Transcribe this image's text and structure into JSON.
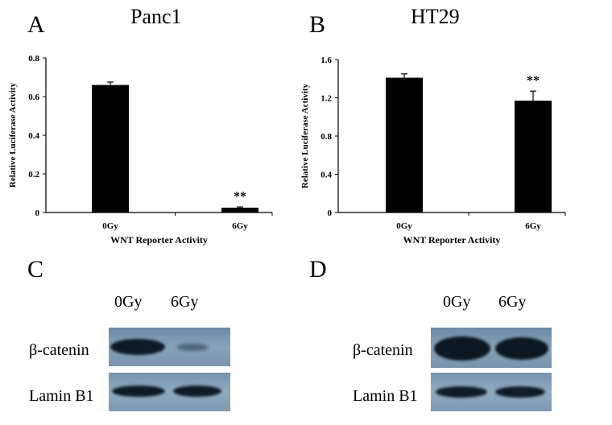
{
  "panels": {
    "A": {
      "letter": "A",
      "title": "Panc1"
    },
    "B": {
      "letter": "B",
      "title": "HT29"
    },
    "C": {
      "letter": "C",
      "lanes": [
        "0Gy",
        "6Gy"
      ],
      "rows": [
        "β-catenin",
        "Lamin B1"
      ]
    },
    "D": {
      "letter": "D",
      "lanes": [
        "0Gy",
        "6Gy"
      ],
      "rows": [
        "β-catenin",
        "Lamin B1"
      ]
    }
  },
  "chart_data": [
    {
      "type": "bar",
      "title": "Panc1",
      "categories": [
        "0Gy",
        "6Gy"
      ],
      "values": [
        0.66,
        0.025
      ],
      "errors": [
        0.015,
        0.004
      ],
      "annotations": [
        "",
        "**"
      ],
      "xlabel": "WNT Reporter Activity",
      "ylabel": "Relative Luciferase Activity",
      "ylim": [
        0,
        0.8
      ],
      "yticks": [
        0,
        0.2,
        0.4,
        0.6,
        0.8
      ],
      "yticklabels": [
        "0",
        "0.2",
        "0.4",
        "0.6",
        "0.8"
      ],
      "bar_color": "#000000"
    },
    {
      "type": "bar",
      "title": "HT29",
      "categories": [
        "0Gy",
        "6Gy"
      ],
      "values": [
        1.41,
        1.17
      ],
      "errors": [
        0.04,
        0.1
      ],
      "annotations": [
        "",
        "**"
      ],
      "xlabel": "WNT Reporter Activity",
      "ylabel": "Relative Luciferase Activity",
      "ylim": [
        0,
        1.6
      ],
      "yticks": [
        0,
        0.4,
        0.8,
        1.2,
        1.6
      ],
      "yticklabels": [
        "0",
        "0.4",
        "0.8",
        "1.2",
        "1.6"
      ],
      "bar_color": "#000000"
    }
  ]
}
